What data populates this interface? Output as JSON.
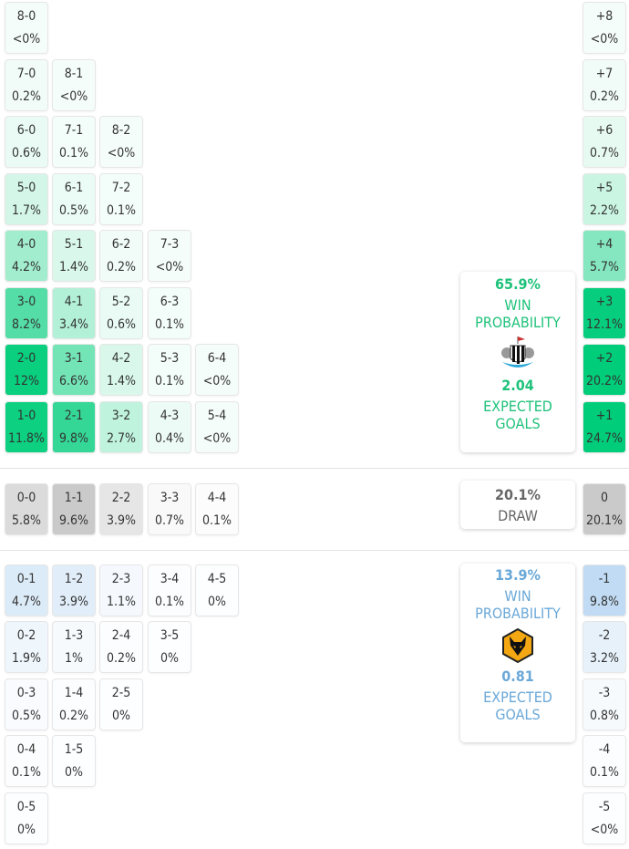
{
  "colors": {
    "home": "#00cc78",
    "away": "#6aa8d8",
    "draw": "#666666"
  },
  "home": {
    "rows": [
      [
        [
          "8-0",
          "<0%"
        ]
      ],
      [
        [
          "7-0",
          "0.2%"
        ],
        [
          "8-1",
          "<0%"
        ]
      ],
      [
        [
          "6-0",
          "0.6%"
        ],
        [
          "7-1",
          "0.1%"
        ],
        [
          "8-2",
          "<0%"
        ]
      ],
      [
        [
          "5-0",
          "1.7%"
        ],
        [
          "6-1",
          "0.5%"
        ],
        [
          "7-2",
          "0.1%"
        ]
      ],
      [
        [
          "4-0",
          "4.2%"
        ],
        [
          "5-1",
          "1.4%"
        ],
        [
          "6-2",
          "0.2%"
        ],
        [
          "7-3",
          "<0%"
        ]
      ],
      [
        [
          "3-0",
          "8.2%"
        ],
        [
          "4-1",
          "3.4%"
        ],
        [
          "5-2",
          "0.6%"
        ],
        [
          "6-3",
          "0.1%"
        ]
      ],
      [
        [
          "2-0",
          "12%"
        ],
        [
          "3-1",
          "6.6%"
        ],
        [
          "4-2",
          "1.4%"
        ],
        [
          "5-3",
          "0.1%"
        ],
        [
          "6-4",
          "<0%"
        ]
      ],
      [
        [
          "1-0",
          "11.8%"
        ],
        [
          "2-1",
          "9.8%"
        ],
        [
          "3-2",
          "2.7%"
        ],
        [
          "4-3",
          "0.4%"
        ],
        [
          "5-4",
          "<0%"
        ]
      ]
    ],
    "margins": [
      [
        "+8",
        "<0%"
      ],
      [
        "+7",
        "0.2%"
      ],
      [
        "+6",
        "0.7%"
      ],
      [
        "+5",
        "2.2%"
      ],
      [
        "+4",
        "5.7%"
      ],
      [
        "+3",
        "12.1%"
      ],
      [
        "+2",
        "20.2%"
      ],
      [
        "+1",
        "24.7%"
      ]
    ],
    "summary": {
      "win_pct": "65.9%",
      "win_label": "WIN PROBABILITY",
      "xg": "2.04",
      "xg_label": "EXPECTED GOALS",
      "crest": "newcastle-crest"
    }
  },
  "draw": {
    "row": [
      [
        "0-0",
        "5.8%"
      ],
      [
        "1-1",
        "9.6%"
      ],
      [
        "2-2",
        "3.9%"
      ],
      [
        "3-3",
        "0.7%"
      ],
      [
        "4-4",
        "0.1%"
      ]
    ],
    "margin": [
      "0",
      "20.1%"
    ],
    "summary": {
      "pct": "20.1%",
      "label": "DRAW"
    }
  },
  "away": {
    "rows": [
      [
        [
          "0-1",
          "4.7%"
        ],
        [
          "1-2",
          "3.9%"
        ],
        [
          "2-3",
          "1.1%"
        ],
        [
          "3-4",
          "0.1%"
        ],
        [
          "4-5",
          "0%"
        ]
      ],
      [
        [
          "0-2",
          "1.9%"
        ],
        [
          "1-3",
          "1%"
        ],
        [
          "2-4",
          "0.2%"
        ],
        [
          "3-5",
          "0%"
        ]
      ],
      [
        [
          "0-3",
          "0.5%"
        ],
        [
          "1-4",
          "0.2%"
        ],
        [
          "2-5",
          "0%"
        ]
      ],
      [
        [
          "0-4",
          "0.1%"
        ],
        [
          "1-5",
          "0%"
        ]
      ],
      [
        [
          "0-5",
          "0%"
        ]
      ]
    ],
    "margins": [
      [
        "-1",
        "9.8%"
      ],
      [
        "-2",
        "3.2%"
      ],
      [
        "-3",
        "0.8%"
      ],
      [
        "-4",
        "0.1%"
      ],
      [
        "-5",
        "<0%"
      ]
    ],
    "summary": {
      "win_pct": "13.9%",
      "win_label": "WIN PROBABILITY",
      "xg": "0.81",
      "xg_label": "EXPECTED GOALS",
      "crest": "wolves-crest"
    }
  }
}
